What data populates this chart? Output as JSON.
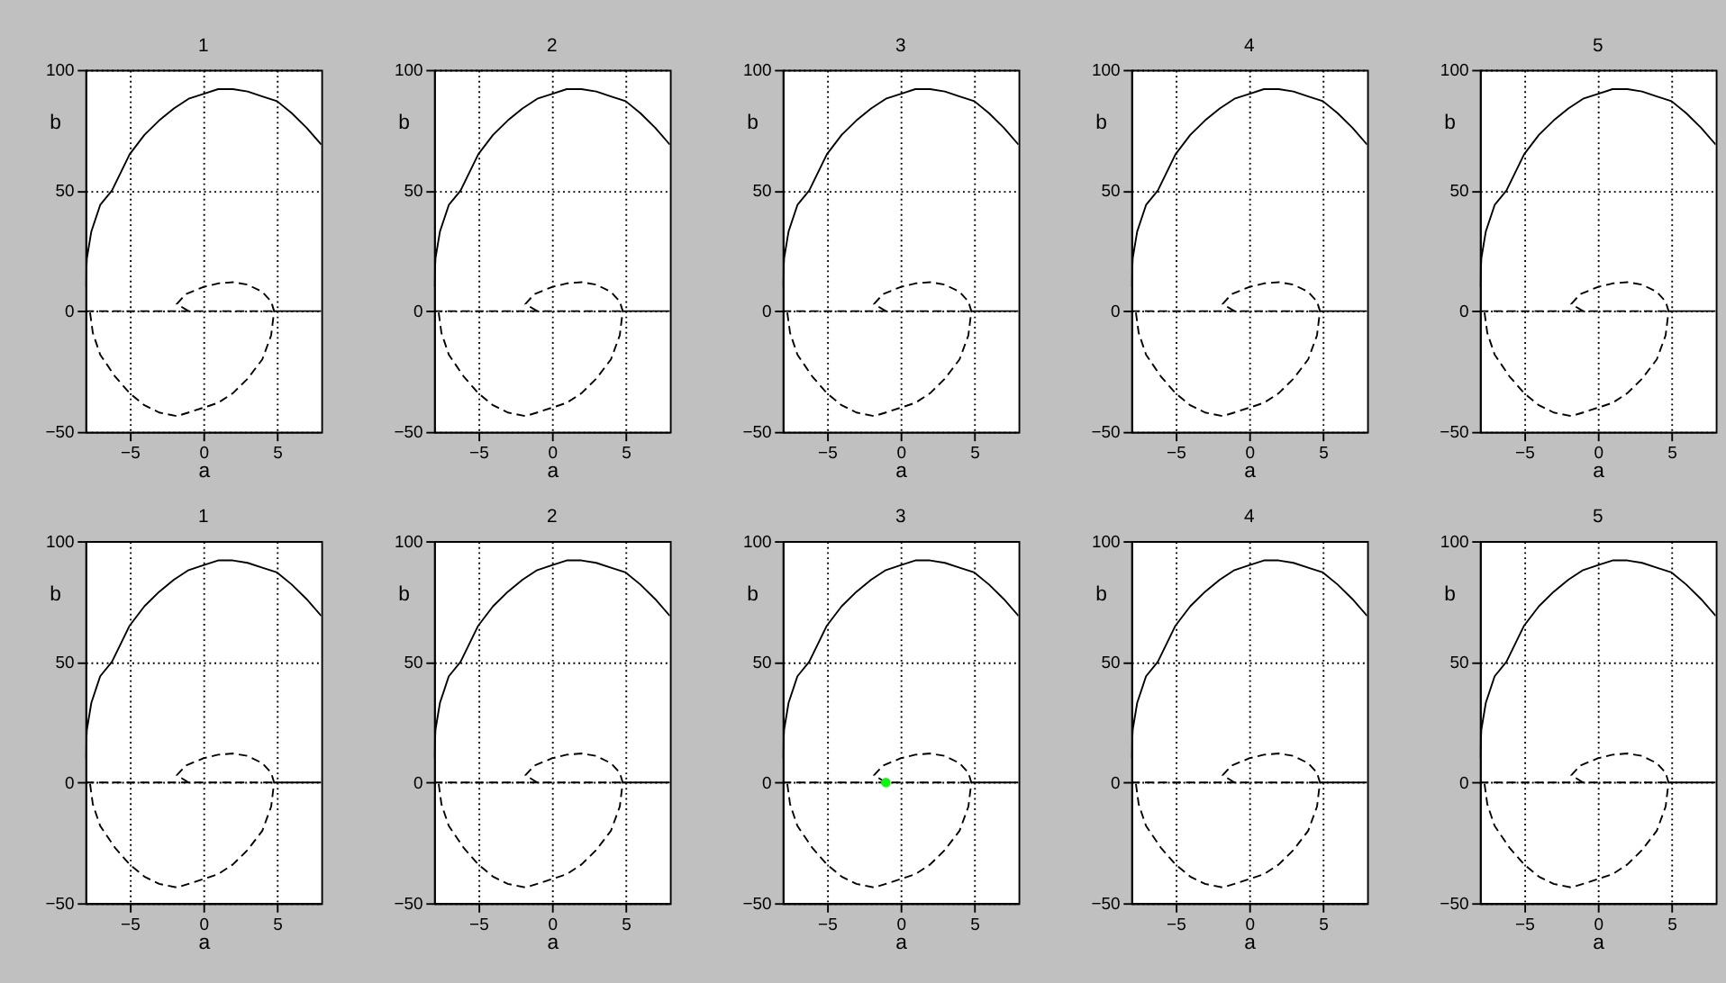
{
  "chart_data": [
    {
      "type": "line",
      "title": "1",
      "xlabel": "a",
      "ylabel": "b",
      "xlim": [
        -8,
        8
      ],
      "ylim": [
        -50,
        100
      ],
      "xticks": [
        -5,
        0,
        5
      ],
      "yticks": [
        -50,
        0,
        50,
        100
      ],
      "grid": true,
      "series": [
        {
          "color": "#000000",
          "line_style": "solid",
          "x": [
            -8,
            -7.9,
            -7.6,
            -7,
            -6.2,
            -5,
            -4,
            -3,
            -2,
            -1,
            0,
            1,
            2,
            3,
            4,
            5,
            6,
            7,
            8
          ],
          "values": [
            10,
            22,
            33,
            44,
            50,
            65,
            73,
            79,
            84,
            88,
            90,
            92,
            92,
            91,
            89,
            87,
            82,
            76,
            69
          ]
        },
        {
          "color": "#000000",
          "line_style": "solid",
          "x": [
            4.8,
            8
          ],
          "values": [
            0,
            0
          ]
        },
        {
          "color": "#000000",
          "line_style": "dashed",
          "x": [
            -8,
            4.8
          ],
          "values": [
            0,
            0
          ]
        },
        {
          "color": "#000000",
          "line_style": "dashed",
          "x": [
            -1,
            -1.8,
            -1.2,
            0,
            1,
            2,
            3,
            4,
            4.6,
            4.8,
            4.6,
            4,
            3,
            2,
            1,
            0,
            -1,
            -1.8,
            -3,
            -4,
            -5,
            -6,
            -7,
            -7.5,
            -7.7
          ],
          "values": [
            0,
            3,
            7,
            10,
            11.5,
            12,
            11,
            8,
            4,
            0,
            -10,
            -20,
            -28,
            -34,
            -38,
            -40,
            -42,
            -43.5,
            -42,
            -39,
            -34,
            -27,
            -18,
            -9,
            0
          ]
        }
      ]
    },
    {
      "type": "line",
      "title": "2",
      "xlabel": "a",
      "ylabel": "b",
      "xlim": [
        -8,
        8
      ],
      "ylim": [
        -50,
        100
      ],
      "xticks": [
        -5,
        0,
        5
      ],
      "yticks": [
        -50,
        0,
        50,
        100
      ],
      "grid": true,
      "series": [
        {
          "color": "#000000",
          "line_style": "solid",
          "x": [
            -8,
            -7.9,
            -7.6,
            -7,
            -6.2,
            -5,
            -4,
            -3,
            -2,
            -1,
            0,
            1,
            2,
            3,
            4,
            5,
            6,
            7,
            8
          ],
          "values": [
            10,
            22,
            33,
            44,
            50,
            65,
            73,
            79,
            84,
            88,
            90,
            92,
            92,
            91,
            89,
            87,
            82,
            76,
            69
          ]
        },
        {
          "color": "#000000",
          "line_style": "solid",
          "x": [
            4.8,
            8
          ],
          "values": [
            0,
            0
          ]
        },
        {
          "color": "#000000",
          "line_style": "dashed",
          "x": [
            -8,
            4.8
          ],
          "values": [
            0,
            0
          ]
        },
        {
          "color": "#000000",
          "line_style": "dashed",
          "x": [
            -1,
            -1.8,
            -1.2,
            0,
            1,
            2,
            3,
            4,
            4.6,
            4.8,
            4.6,
            4,
            3,
            2,
            1,
            0,
            -1,
            -1.8,
            -3,
            -4,
            -5,
            -6,
            -7,
            -7.5,
            -7.7
          ],
          "values": [
            0,
            3,
            7,
            10,
            11.5,
            12,
            11,
            8,
            4,
            0,
            -10,
            -20,
            -28,
            -34,
            -38,
            -40,
            -42,
            -43.5,
            -42,
            -39,
            -34,
            -27,
            -18,
            -9,
            0
          ]
        }
      ]
    },
    {
      "type": "line",
      "title": "3",
      "xlabel": "a",
      "ylabel": "b",
      "xlim": [
        -8,
        8
      ],
      "ylim": [
        -50,
        100
      ],
      "xticks": [
        -5,
        0,
        5
      ],
      "yticks": [
        -50,
        0,
        50,
        100
      ],
      "grid": true,
      "series": [
        {
          "color": "#000000",
          "line_style": "solid",
          "x": [
            -8,
            -7.9,
            -7.6,
            -7,
            -6.2,
            -5,
            -4,
            -3,
            -2,
            -1,
            0,
            1,
            2,
            3,
            4,
            5,
            6,
            7,
            8
          ],
          "values": [
            10,
            22,
            33,
            44,
            50,
            65,
            73,
            79,
            84,
            88,
            90,
            92,
            92,
            91,
            89,
            87,
            82,
            76,
            69
          ]
        },
        {
          "color": "#000000",
          "line_style": "solid",
          "x": [
            4.8,
            8
          ],
          "values": [
            0,
            0
          ]
        },
        {
          "color": "#000000",
          "line_style": "dashed",
          "x": [
            -8,
            4.8
          ],
          "values": [
            0,
            0
          ]
        },
        {
          "color": "#000000",
          "line_style": "dashed",
          "x": [
            -1,
            -1.8,
            -1.2,
            0,
            1,
            2,
            3,
            4,
            4.6,
            4.8,
            4.6,
            4,
            3,
            2,
            1,
            0,
            -1,
            -1.8,
            -3,
            -4,
            -5,
            -6,
            -7,
            -7.5,
            -7.7
          ],
          "values": [
            0,
            3,
            7,
            10,
            11.5,
            12,
            11,
            8,
            4,
            0,
            -10,
            -20,
            -28,
            -34,
            -38,
            -40,
            -42,
            -43.5,
            -42,
            -39,
            -34,
            -27,
            -18,
            -9,
            0
          ]
        }
      ]
    },
    {
      "type": "line",
      "title": "4",
      "xlabel": "a",
      "ylabel": "b",
      "xlim": [
        -8,
        8
      ],
      "ylim": [
        -50,
        100
      ],
      "xticks": [
        -5,
        0,
        5
      ],
      "yticks": [
        -50,
        0,
        50,
        100
      ],
      "grid": true,
      "series": [
        {
          "color": "#000000",
          "line_style": "solid",
          "x": [
            -8,
            -7.9,
            -7.6,
            -7,
            -6.2,
            -5,
            -4,
            -3,
            -2,
            -1,
            0,
            1,
            2,
            3,
            4,
            5,
            6,
            7,
            8
          ],
          "values": [
            10,
            22,
            33,
            44,
            50,
            65,
            73,
            79,
            84,
            88,
            90,
            92,
            92,
            91,
            89,
            87,
            82,
            76,
            69
          ]
        },
        {
          "color": "#000000",
          "line_style": "solid",
          "x": [
            4.8,
            8
          ],
          "values": [
            0,
            0
          ]
        },
        {
          "color": "#000000",
          "line_style": "dashed",
          "x": [
            -8,
            4.8
          ],
          "values": [
            0,
            0
          ]
        },
        {
          "color": "#000000",
          "line_style": "dashed",
          "x": [
            -1,
            -1.8,
            -1.2,
            0,
            1,
            2,
            3,
            4,
            4.6,
            4.8,
            4.6,
            4,
            3,
            2,
            1,
            0,
            -1,
            -1.8,
            -3,
            -4,
            -5,
            -6,
            -7,
            -7.5,
            -7.7
          ],
          "values": [
            0,
            3,
            7,
            10,
            11.5,
            12,
            11,
            8,
            4,
            0,
            -10,
            -20,
            -28,
            -34,
            -38,
            -40,
            -42,
            -43.5,
            -42,
            -39,
            -34,
            -27,
            -18,
            -9,
            0
          ]
        }
      ]
    },
    {
      "type": "line",
      "title": "5",
      "xlabel": "a",
      "ylabel": "b",
      "xlim": [
        -8,
        8
      ],
      "ylim": [
        -50,
        100
      ],
      "xticks": [
        -5,
        0,
        5
      ],
      "yticks": [
        -50,
        0,
        50,
        100
      ],
      "grid": true,
      "series": [
        {
          "color": "#000000",
          "line_style": "solid",
          "x": [
            -8,
            -7.9,
            -7.6,
            -7,
            -6.2,
            -5,
            -4,
            -3,
            -2,
            -1,
            0,
            1,
            2,
            3,
            4,
            5,
            6,
            7,
            8
          ],
          "values": [
            10,
            22,
            33,
            44,
            50,
            65,
            73,
            79,
            84,
            88,
            90,
            92,
            92,
            91,
            89,
            87,
            82,
            76,
            69
          ]
        },
        {
          "color": "#000000",
          "line_style": "solid",
          "x": [
            4.8,
            8
          ],
          "values": [
            0,
            0
          ]
        },
        {
          "color": "#000000",
          "line_style": "dashed",
          "x": [
            -8,
            4.8
          ],
          "values": [
            0,
            0
          ]
        },
        {
          "color": "#000000",
          "line_style": "dashed",
          "x": [
            -1,
            -1.8,
            -1.2,
            0,
            1,
            2,
            3,
            4,
            4.6,
            4.8,
            4.6,
            4,
            3,
            2,
            1,
            0,
            -1,
            -1.8,
            -3,
            -4,
            -5,
            -6,
            -7,
            -7.5,
            -7.7
          ],
          "values": [
            0,
            3,
            7,
            10,
            11.5,
            12,
            11,
            8,
            4,
            0,
            -10,
            -20,
            -28,
            -34,
            -38,
            -40,
            -42,
            -43.5,
            -42,
            -39,
            -34,
            -27,
            -18,
            -9,
            0
          ]
        }
      ]
    },
    {
      "type": "line",
      "title": "1",
      "xlabel": "a",
      "ylabel": "b",
      "xlim": [
        -8,
        8
      ],
      "ylim": [
        -50,
        100
      ],
      "xticks": [
        -5,
        0,
        5
      ],
      "yticks": [
        -50,
        0,
        50,
        100
      ],
      "grid": true,
      "series": [
        {
          "color": "#000000",
          "line_style": "solid",
          "x": [
            -8,
            -7.9,
            -7.6,
            -7,
            -6.2,
            -5,
            -4,
            -3,
            -2,
            -1,
            0,
            1,
            2,
            3,
            4,
            5,
            6,
            7,
            8
          ],
          "values": [
            10,
            22,
            33,
            44,
            50,
            65,
            73,
            79,
            84,
            88,
            90,
            92,
            92,
            91,
            89,
            87,
            82,
            76,
            69
          ]
        },
        {
          "color": "#000000",
          "line_style": "solid",
          "x": [
            4.8,
            8
          ],
          "values": [
            0,
            0
          ]
        },
        {
          "color": "#000000",
          "line_style": "dashed",
          "x": [
            -8,
            4.8
          ],
          "values": [
            0,
            0
          ]
        },
        {
          "color": "#000000",
          "line_style": "dashed",
          "x": [
            -1,
            -1.8,
            -1.2,
            0,
            1,
            2,
            3,
            4,
            4.6,
            4.8,
            4.6,
            4,
            3,
            2,
            1,
            0,
            -1,
            -1.8,
            -3,
            -4,
            -5,
            -6,
            -7,
            -7.5,
            -7.7
          ],
          "values": [
            0,
            3,
            7,
            10,
            11.5,
            12,
            11,
            8,
            4,
            0,
            -10,
            -20,
            -28,
            -34,
            -38,
            -40,
            -42,
            -43.5,
            -42,
            -39,
            -34,
            -27,
            -18,
            -9,
            0
          ]
        }
      ]
    },
    {
      "type": "line",
      "title": "2",
      "xlabel": "a",
      "ylabel": "b",
      "xlim": [
        -8,
        8
      ],
      "ylim": [
        -50,
        100
      ],
      "xticks": [
        -5,
        0,
        5
      ],
      "yticks": [
        -50,
        0,
        50,
        100
      ],
      "grid": true,
      "series": [
        {
          "color": "#000000",
          "line_style": "solid",
          "x": [
            -8,
            -7.9,
            -7.6,
            -7,
            -6.2,
            -5,
            -4,
            -3,
            -2,
            -1,
            0,
            1,
            2,
            3,
            4,
            5,
            6,
            7,
            8
          ],
          "values": [
            10,
            22,
            33,
            44,
            50,
            65,
            73,
            79,
            84,
            88,
            90,
            92,
            92,
            91,
            89,
            87,
            82,
            76,
            69
          ]
        },
        {
          "color": "#000000",
          "line_style": "solid",
          "x": [
            4.8,
            8
          ],
          "values": [
            0,
            0
          ]
        },
        {
          "color": "#000000",
          "line_style": "dashed",
          "x": [
            -8,
            4.8
          ],
          "values": [
            0,
            0
          ]
        },
        {
          "color": "#000000",
          "line_style": "dashed",
          "x": [
            -1,
            -1.8,
            -1.2,
            0,
            1,
            2,
            3,
            4,
            4.6,
            4.8,
            4.6,
            4,
            3,
            2,
            1,
            0,
            -1,
            -1.8,
            -3,
            -4,
            -5,
            -6,
            -7,
            -7.5,
            -7.7
          ],
          "values": [
            0,
            3,
            7,
            10,
            11.5,
            12,
            11,
            8,
            4,
            0,
            -10,
            -20,
            -28,
            -34,
            -38,
            -40,
            -42,
            -43.5,
            -42,
            -39,
            -34,
            -27,
            -18,
            -9,
            0
          ]
        }
      ]
    },
    {
      "type": "line",
      "title": "3",
      "xlabel": "a",
      "ylabel": "b",
      "xlim": [
        -8,
        8
      ],
      "ylim": [
        -50,
        100
      ],
      "xticks": [
        -5,
        0,
        5
      ],
      "yticks": [
        -50,
        0,
        50,
        100
      ],
      "grid": true,
      "series": [
        {
          "color": "#000000",
          "line_style": "solid",
          "x": [
            -8,
            -7.9,
            -7.6,
            -7,
            -6.2,
            -5,
            -4,
            -3,
            -2,
            -1,
            0,
            1,
            2,
            3,
            4,
            5,
            6,
            7,
            8
          ],
          "values": [
            10,
            22,
            33,
            44,
            50,
            65,
            73,
            79,
            84,
            88,
            90,
            92,
            92,
            91,
            89,
            87,
            82,
            76,
            69
          ]
        },
        {
          "color": "#000000",
          "line_style": "solid",
          "x": [
            4.8,
            8
          ],
          "values": [
            0,
            0
          ]
        },
        {
          "color": "#000000",
          "line_style": "dashed",
          "x": [
            -8,
            4.8
          ],
          "values": [
            0,
            0
          ]
        },
        {
          "color": "#000000",
          "line_style": "dashed",
          "x": [
            -1,
            -1.8,
            -1.2,
            0,
            1,
            2,
            3,
            4,
            4.6,
            4.8,
            4.6,
            4,
            3,
            2,
            1,
            0,
            -1,
            -1.8,
            -3,
            -4,
            -5,
            -6,
            -7,
            -7.5,
            -7.7
          ],
          "values": [
            0,
            3,
            7,
            10,
            11.5,
            12,
            11,
            8,
            4,
            0,
            -10,
            -20,
            -28,
            -34,
            -38,
            -40,
            -42,
            -43.5,
            -42,
            -39,
            -34,
            -27,
            -18,
            -9,
            0
          ]
        },
        {
          "type": "scatter",
          "marker": "circle",
          "color": "#00ff00",
          "x": [
            -1
          ],
          "values": [
            0
          ]
        }
      ]
    },
    {
      "type": "line",
      "title": "4",
      "xlabel": "a",
      "ylabel": "b",
      "xlim": [
        -8,
        8
      ],
      "ylim": [
        -50,
        100
      ],
      "xticks": [
        -5,
        0,
        5
      ],
      "yticks": [
        -50,
        0,
        50,
        100
      ],
      "grid": true,
      "series": [
        {
          "color": "#000000",
          "line_style": "solid",
          "x": [
            -8,
            -7.9,
            -7.6,
            -7,
            -6.2,
            -5,
            -4,
            -3,
            -2,
            -1,
            0,
            1,
            2,
            3,
            4,
            5,
            6,
            7,
            8
          ],
          "values": [
            10,
            22,
            33,
            44,
            50,
            65,
            73,
            79,
            84,
            88,
            90,
            92,
            92,
            91,
            89,
            87,
            82,
            76,
            69
          ]
        },
        {
          "color": "#000000",
          "line_style": "solid",
          "x": [
            4.8,
            8
          ],
          "values": [
            0,
            0
          ]
        },
        {
          "color": "#000000",
          "line_style": "dashed",
          "x": [
            -8,
            4.8
          ],
          "values": [
            0,
            0
          ]
        },
        {
          "color": "#000000",
          "line_style": "dashed",
          "x": [
            -1,
            -1.8,
            -1.2,
            0,
            1,
            2,
            3,
            4,
            4.6,
            4.8,
            4.6,
            4,
            3,
            2,
            1,
            0,
            -1,
            -1.8,
            -3,
            -4,
            -5,
            -6,
            -7,
            -7.5,
            -7.7
          ],
          "values": [
            0,
            3,
            7,
            10,
            11.5,
            12,
            11,
            8,
            4,
            0,
            -10,
            -20,
            -28,
            -34,
            -38,
            -40,
            -42,
            -43.5,
            -42,
            -39,
            -34,
            -27,
            -18,
            -9,
            0
          ]
        }
      ]
    },
    {
      "type": "line",
      "title": "5",
      "xlabel": "a",
      "ylabel": "b",
      "xlim": [
        -8,
        8
      ],
      "ylim": [
        -50,
        100
      ],
      "xticks": [
        -5,
        0,
        5
      ],
      "yticks": [
        -50,
        0,
        50,
        100
      ],
      "grid": true,
      "series": [
        {
          "color": "#000000",
          "line_style": "solid",
          "x": [
            -8,
            -7.9,
            -7.6,
            -7,
            -6.2,
            -5,
            -4,
            -3,
            -2,
            -1,
            0,
            1,
            2,
            3,
            4,
            5,
            6,
            7,
            8
          ],
          "values": [
            10,
            22,
            33,
            44,
            50,
            65,
            73,
            79,
            84,
            88,
            90,
            92,
            92,
            91,
            89,
            87,
            82,
            76,
            69
          ]
        },
        {
          "color": "#000000",
          "line_style": "solid",
          "x": [
            4.8,
            8
          ],
          "values": [
            0,
            0
          ]
        },
        {
          "color": "#000000",
          "line_style": "dashed",
          "x": [
            -8,
            4.8
          ],
          "values": [
            0,
            0
          ]
        },
        {
          "color": "#000000",
          "line_style": "dashed",
          "x": [
            -1,
            -1.8,
            -1.2,
            0,
            1,
            2,
            3,
            4,
            4.6,
            4.8,
            4.6,
            4,
            3,
            2,
            1,
            0,
            -1,
            -1.8,
            -3,
            -4,
            -5,
            -6,
            -7,
            -7.5,
            -7.7
          ],
          "values": [
            0,
            3,
            7,
            10,
            11.5,
            12,
            11,
            8,
            4,
            0,
            -10,
            -20,
            -28,
            -34,
            -38,
            -40,
            -42,
            -43.5,
            -42,
            -39,
            -34,
            -27,
            -18,
            -9,
            0
          ]
        }
      ]
    }
  ]
}
